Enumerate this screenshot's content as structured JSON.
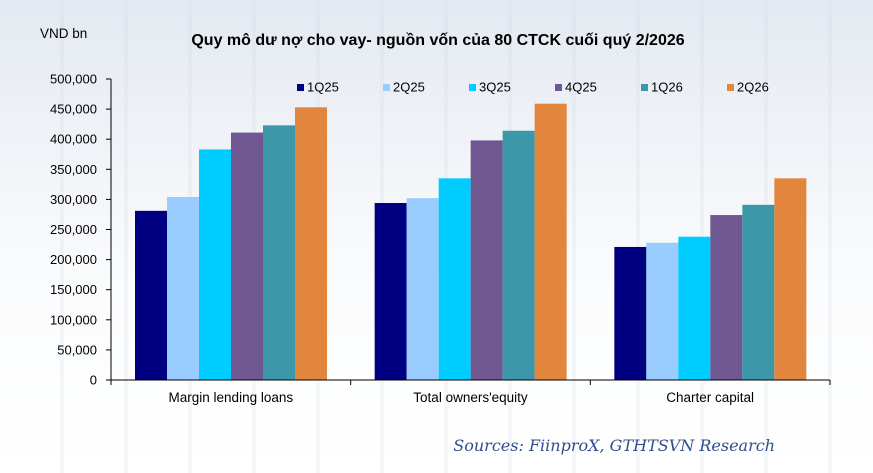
{
  "chart_data": {
    "type": "bar",
    "title": "Quy mô dư nợ cho vay- nguồn vốn của 80 CTCK cuối quý 2/2026",
    "ylabel": "VND bn",
    "xlabel": "",
    "ylim": [
      0,
      500000
    ],
    "yticks": [
      "0",
      "50,000",
      "100,000",
      "150,000",
      "200,000",
      "250,000",
      "300,000",
      "350,000",
      "400,000",
      "450,000",
      "500,000"
    ],
    "categories": [
      "Margin lending loans",
      "Total owners'equity",
      "Charter capital"
    ],
    "series": [
      {
        "name": "1Q25",
        "color": "#000080",
        "values": [
          281000,
          294000,
          221000
        ]
      },
      {
        "name": "2Q25",
        "color": "#99ccff",
        "values": [
          304000,
          302000,
          228000
        ]
      },
      {
        "name": "3Q25",
        "color": "#00ccff",
        "values": [
          383000,
          335000,
          238000
        ]
      },
      {
        "name": "4Q25",
        "color": "#6f5791",
        "values": [
          411000,
          398000,
          274000
        ]
      },
      {
        "name": "1Q26",
        "color": "#3c97a8",
        "values": [
          423000,
          414000,
          291000
        ]
      },
      {
        "name": "2Q26",
        "color": "#e2853d",
        "values": [
          453000,
          459000,
          335000
        ]
      }
    ],
    "legend_position": "top",
    "grid": false,
    "source": "Sources: FiinproX, GTHTSVN Research"
  }
}
